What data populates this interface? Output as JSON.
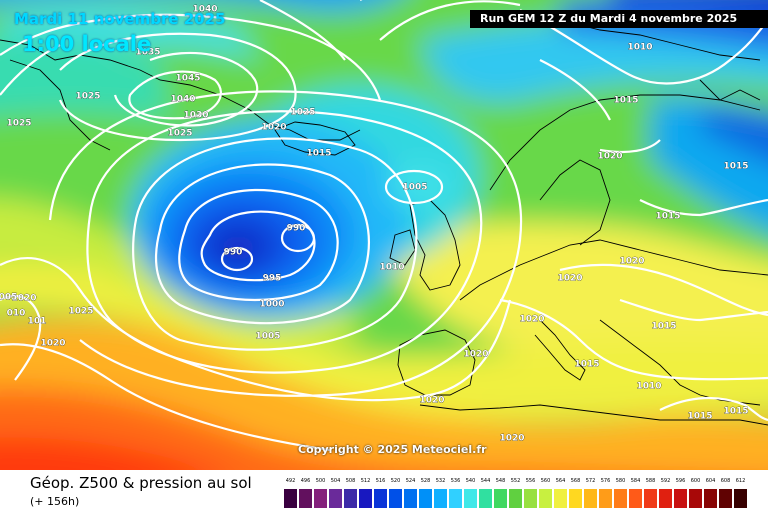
{
  "header": {
    "date": "Mardi 11 novembre 2025",
    "time": "1:00 locale",
    "run": "Run GEM 12 Z du Mardi 4 novembre 2025"
  },
  "copyright": "Copyright © 2025 Meteociel.fr",
  "footer": {
    "title": "Géop. Z500 & pression au sol",
    "hours": "(+ 156h)"
  },
  "legend": {
    "values": [
      "492",
      "496",
      "500",
      "504",
      "508",
      "512",
      "516",
      "520",
      "524",
      "528",
      "532",
      "536",
      "540",
      "544",
      "548",
      "552",
      "556",
      "560",
      "564",
      "568",
      "572",
      "576",
      "580",
      "584",
      "588",
      "592",
      "596",
      "600",
      "604",
      "608",
      "612"
    ],
    "colors": [
      "#3a0040",
      "#62105e",
      "#84207c",
      "#6a2a9a",
      "#3c2aa8",
      "#1818c0",
      "#0a34d8",
      "#0050e8",
      "#0070f0",
      "#0090f8",
      "#10b0ff",
      "#30d0ff",
      "#40e8e8",
      "#30e0a0",
      "#40d860",
      "#60d040",
      "#98e040",
      "#c8f040",
      "#f0f040",
      "#ffd820",
      "#ffb818",
      "#ff9c18",
      "#ff7c18",
      "#ff5a18",
      "#f03a18",
      "#e02010",
      "#c81010",
      "#a80808",
      "#880404",
      "#600202",
      "#380000"
    ]
  },
  "isobars": [
    {
      "text": "1040"
    },
    {
      "text": "1045"
    },
    {
      "text": "1040"
    },
    {
      "text": "1035"
    },
    {
      "text": "1030"
    },
    {
      "text": "1025"
    },
    {
      "text": "1025"
    },
    {
      "text": "1025"
    },
    {
      "text": "1025"
    },
    {
      "text": "1020"
    },
    {
      "text": "1015"
    },
    {
      "text": "1010"
    },
    {
      "text": "1015"
    },
    {
      "text": "1020"
    },
    {
      "text": "1015"
    },
    {
      "text": "1015"
    },
    {
      "text": "1005"
    },
    {
      "text": "990"
    },
    {
      "text": "990"
    },
    {
      "text": "995"
    },
    {
      "text": "1000"
    },
    {
      "text": "1005"
    },
    {
      "text": "1010"
    },
    {
      "text": "1020"
    },
    {
      "text": "1020"
    },
    {
      "text": "1020"
    },
    {
      "text": "1015"
    },
    {
      "text": "1020"
    },
    {
      "text": "1015"
    },
    {
      "text": "1010"
    },
    {
      "text": "1015"
    },
    {
      "text": "1015"
    },
    {
      "text": "1020"
    },
    {
      "text": "1020"
    },
    {
      "text": "1025"
    },
    {
      "text": "1020"
    },
    {
      "text": "1020"
    },
    {
      "text": "005"
    },
    {
      "text": "010"
    },
    {
      "text": "101"
    }
  ]
}
